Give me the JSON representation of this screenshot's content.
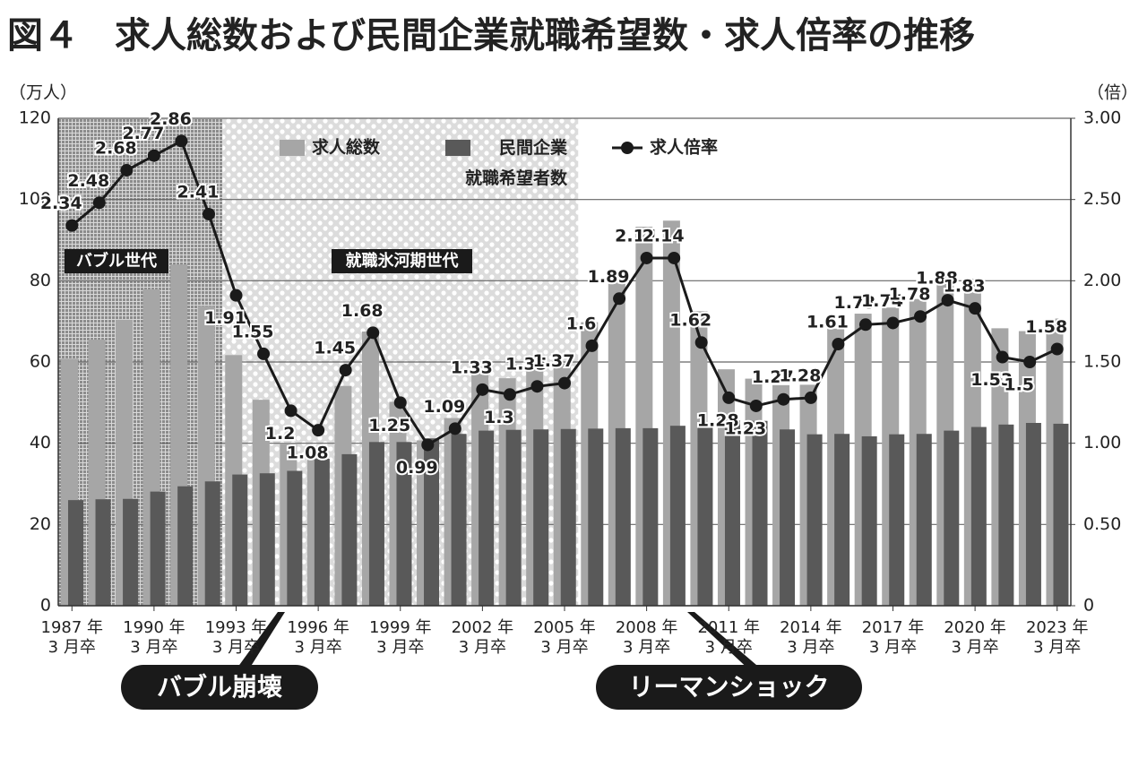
{
  "chart_data": {
    "type": "bar",
    "title": "図４　求人総数および民間企業就職希望数・求人倍率の推移",
    "y_label": "（万人）",
    "y2_label": "（倍）",
    "categories": [
      "1987 年\n3 月卒",
      null,
      null,
      "1990 年\n3 月卒",
      null,
      null,
      "1993 年\n3 月卒",
      null,
      null,
      "1996 年\n3 月卒",
      null,
      null,
      "1999 年\n3 月卒",
      null,
      null,
      "2002 年\n3 月卒",
      null,
      null,
      "2005 年\n3 月卒",
      null,
      null,
      "2008 年\n3 月卒",
      null,
      null,
      "2011 年\n3 月卒",
      null,
      null,
      "2014 年\n3 月卒",
      null,
      null,
      "2017 年\n3 月卒",
      null,
      null,
      "2020 年\n3 月卒",
      null,
      null,
      "2023 年\n3 月卒"
    ],
    "series": [
      {
        "name": "求人総数",
        "type": "bar",
        "color": "#a6a6a6",
        "values": [
          60.8,
          65.5,
          70.4,
          77.9,
          84.0,
          73.8,
          61.7,
          50.7,
          40.0,
          39.1,
          54.1,
          67.5,
          50.2,
          40.7,
          46.2,
          57.3,
          56.0,
          58.3,
          59.6,
          69.8,
          82.5,
          93.3,
          94.8,
          72.5,
          58.2,
          55.9,
          54.3,
          54.4,
          68.2,
          71.9,
          73.4,
          75.5,
          81.4,
          80.5,
          68.3,
          67.6,
          70.7
        ]
      },
      {
        "name": "民間企業\n就職希望者数",
        "type": "bar",
        "color": "#595959",
        "values": [
          26.0,
          26.2,
          26.3,
          28.1,
          29.4,
          30.6,
          32.3,
          32.6,
          33.2,
          36.2,
          37.3,
          40.3,
          40.3,
          41.2,
          42.3,
          43.1,
          43.3,
          43.4,
          43.5,
          43.6,
          43.7,
          43.7,
          44.3,
          44.7,
          45.6,
          45.5,
          43.4,
          42.2,
          42.3,
          41.7,
          42.2,
          42.3,
          43.1,
          44.0,
          44.6,
          45.0,
          44.8
        ]
      },
      {
        "name": "求人倍率",
        "type": "line",
        "axis": "y2",
        "color": "#1a1a1a",
        "values": [
          2.34,
          2.48,
          2.68,
          2.77,
          2.86,
          2.41,
          1.91,
          1.55,
          1.2,
          1.08,
          1.45,
          1.68,
          1.25,
          0.99,
          1.09,
          1.33,
          1.3,
          1.35,
          1.37,
          1.6,
          1.89,
          2.14,
          2.14,
          1.62,
          1.28,
          1.23,
          1.27,
          1.28,
          1.61,
          1.73,
          1.74,
          1.78,
          1.88,
          1.83,
          1.53,
          1.5,
          1.58
        ],
        "value_labels": [
          "2.34",
          "2.48",
          "2.68",
          "2.77",
          "2.86",
          "2.41",
          "1.91",
          "1.55",
          "1.2",
          "1.08",
          "1.45",
          "1.68",
          "1.25",
          "0.99",
          "1.09",
          "1.33",
          "1.3",
          "1.35",
          "1.37",
          "1.6",
          "1.89",
          "2.14",
          "2.14",
          "1.62",
          "1.28",
          "1.23",
          "1.27",
          "1.28",
          "1.61",
          "1.73",
          "1.74",
          "1.78",
          "1.88",
          "1.83",
          "1.53",
          "1.5",
          "1.58"
        ]
      }
    ],
    "ylim": [
      0,
      120
    ],
    "yticks": [
      0,
      20,
      40,
      60,
      80,
      100,
      120
    ],
    "y2lim": [
      0,
      3
    ],
    "y2ticks": [
      0,
      {
        "value": 0.5,
        "label": "0.50"
      },
      {
        "value": 1,
        "label": "1.00"
      },
      {
        "value": 1.5,
        "label": "1.50"
      },
      {
        "value": 2,
        "label": "2.00"
      },
      {
        "value": 2.5,
        "label": "2.50"
      },
      {
        "value": 3,
        "label": "3.00"
      }
    ],
    "grid": true,
    "annotations": [
      "バブル世代",
      "就職氷河期世代",
      "バブル崩壊",
      "リーマンショック"
    ]
  }
}
